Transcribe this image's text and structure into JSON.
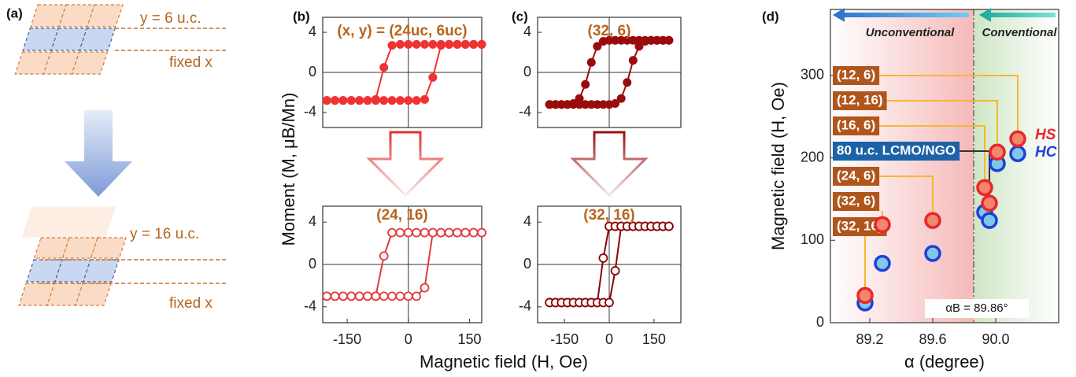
{
  "diagram": {
    "panel": "(a)",
    "top_label": "y = 6 u.c.",
    "top_fixed": "fixed x",
    "bottom_label": "y = 16 u.c.",
    "bottom_fixed": "fixed x"
  },
  "axis_labels": {
    "moment": "Moment (M, μB/Mn)",
    "field": "Magnetic field (H, Oe)"
  },
  "chart_data": [
    {
      "type": "line",
      "panel": "(b)",
      "title": "(x, y) = (24uc, 6uc)",
      "title_color": "#b8651f",
      "xlim": [
        -210,
        180
      ],
      "ylim": [
        -5.5,
        5.5
      ],
      "yticks": [
        -4,
        0,
        4
      ],
      "x": [
        -200,
        -180,
        -160,
        -140,
        -120,
        -100,
        -80,
        -60,
        -40,
        -20,
        0,
        20,
        40,
        60,
        80,
        100,
        120,
        140,
        160,
        180
      ],
      "series": [
        {
          "color": "#f03232",
          "marker": "filled",
          "values": [
            -2.8,
            -2.8,
            -2.8,
            -2.8,
            -2.8,
            -2.8,
            -2.7,
            0.5,
            2.7,
            2.8,
            2.8,
            2.8,
            2.8,
            2.8,
            2.8,
            2.8,
            2.8,
            2.8,
            2.8,
            2.8
          ]
        },
        {
          "color": "#f03232",
          "marker": "filled",
          "values": [
            -2.8,
            -2.8,
            -2.8,
            -2.8,
            -2.8,
            -2.8,
            -2.8,
            -2.8,
            -2.8,
            -2.8,
            -2.8,
            -2.8,
            -2.7,
            -0.5,
            2.7,
            2.8,
            2.8,
            2.8,
            2.8,
            2.8
          ]
        }
      ]
    },
    {
      "type": "line",
      "title": "(24, 16)",
      "title_color": "#b8651f",
      "xlim": [
        -210,
        180
      ],
      "ylim": [
        -5.5,
        5.5
      ],
      "yticks": [
        -4,
        0,
        4
      ],
      "xticks": [
        -150,
        0,
        150
      ],
      "x": [
        -200,
        -180,
        -160,
        -140,
        -120,
        -100,
        -80,
        -60,
        -40,
        -20,
        0,
        20,
        40,
        60,
        80,
        100,
        120,
        140,
        160,
        180
      ],
      "series": [
        {
          "color": "#e23a3a",
          "marker": "open",
          "values": [
            -3.0,
            -3.0,
            -3.0,
            -3.0,
            -3.0,
            -3.0,
            -3.0,
            0.8,
            3.0,
            3.0,
            3.0,
            3.0,
            3.0,
            3.0,
            3.0,
            3.0,
            3.0,
            3.0,
            3.0,
            3.0
          ]
        },
        {
          "color": "#e23a3a",
          "marker": "open",
          "values": [
            -3.0,
            -3.0,
            -3.0,
            -3.0,
            -3.0,
            -3.0,
            -3.0,
            -3.0,
            -3.0,
            -3.0,
            -3.0,
            -3.0,
            -2.2,
            3.0,
            3.0,
            3.0,
            3.0,
            3.0,
            3.0,
            3.0
          ]
        }
      ]
    },
    {
      "type": "line",
      "panel": "(c)",
      "title": "(32, 6)",
      "title_color": "#b8651f",
      "xlim": [
        -240,
        240
      ],
      "ylim": [
        -5.5,
        5.5
      ],
      "yticks": [
        -4,
        0,
        4
      ],
      "x": [
        -200,
        -180,
        -160,
        -140,
        -120,
        -100,
        -80,
        -60,
        -40,
        -20,
        0,
        20,
        40,
        60,
        80,
        100,
        120,
        140,
        160,
        180,
        200
      ],
      "series": [
        {
          "color": "#9a0c0c",
          "marker": "filled",
          "values": [
            -3.2,
            -3.2,
            -3.2,
            -3.2,
            -3.1,
            -2.6,
            -1.2,
            1.0,
            2.6,
            3.1,
            3.2,
            3.2,
            3.2,
            3.2,
            3.2,
            3.2,
            3.2,
            3.2,
            3.2,
            3.2,
            3.2
          ]
        },
        {
          "color": "#9a0c0c",
          "marker": "filled",
          "values": [
            -3.2,
            -3.2,
            -3.2,
            -3.2,
            -3.2,
            -3.2,
            -3.2,
            -3.2,
            -3.2,
            -3.2,
            -3.2,
            -3.1,
            -2.6,
            -1.0,
            1.2,
            2.6,
            3.1,
            3.2,
            3.2,
            3.2,
            3.2
          ]
        }
      ]
    },
    {
      "type": "line",
      "title": "(32, 16)",
      "title_color": "#b8651f",
      "xlim": [
        -240,
        240
      ],
      "ylim": [
        -5.5,
        5.5
      ],
      "yticks": [
        -4,
        0,
        4
      ],
      "xticks": [
        -150,
        0,
        150
      ],
      "x": [
        -200,
        -180,
        -160,
        -140,
        -120,
        -100,
        -80,
        -60,
        -40,
        -20,
        0,
        20,
        40,
        60,
        80,
        100,
        120,
        140,
        160,
        180,
        200
      ],
      "series": [
        {
          "color": "#8b0000",
          "marker": "open",
          "values": [
            -3.6,
            -3.6,
            -3.6,
            -3.6,
            -3.6,
            -3.6,
            -3.6,
            -3.6,
            -3.6,
            0.6,
            3.6,
            3.6,
            3.6,
            3.6,
            3.6,
            3.6,
            3.6,
            3.6,
            3.6,
            3.6,
            3.6
          ]
        },
        {
          "color": "#8b0000",
          "marker": "open",
          "values": [
            -3.6,
            -3.6,
            -3.6,
            -3.6,
            -3.6,
            -3.6,
            -3.6,
            -3.6,
            -3.6,
            -3.6,
            -3.6,
            -0.6,
            3.6,
            3.6,
            3.6,
            3.6,
            3.6,
            3.6,
            3.6,
            3.6,
            3.6
          ]
        }
      ]
    },
    {
      "type": "scatter",
      "panel": "(d)",
      "xlabel": "α (degree)",
      "ylabel": "Magnetic field (H, Oe)",
      "xlim": [
        88.95,
        90.4
      ],
      "ylim": [
        0,
        380
      ],
      "xticks": [
        89.2,
        89.6,
        {
          "value": 90,
          "label": "90.0"
        }
      ],
      "yticks": [
        0,
        100,
        200,
        300
      ],
      "x": [
        90.14,
        90.01,
        89.93,
        89.96,
        89.6,
        89.28,
        89.17
      ],
      "labels": [
        "(12, 6)",
        "(12, 16)",
        "(16, 6)",
        "80 u.c. LCMO/NGO",
        "(24, 6)",
        "(32, 6)",
        "(32, 16)"
      ],
      "label_colors": [
        "#b0561c",
        "#b0561c",
        "#b0561c",
        "#1b62a8",
        "#b0561c",
        "#b0561c",
        "#b0561c"
      ],
      "series": [
        {
          "name": "HS",
          "color": "#e8262b",
          "fill": "#f2876a",
          "values": [
            223,
            207,
            164,
            145,
            124,
            119,
            33
          ]
        },
        {
          "name": "HC",
          "color": "#1f3fd8",
          "fill": "#7fc8ec",
          "values": [
            205,
            193,
            134,
            124,
            84,
            72,
            24
          ]
        }
      ],
      "vline": {
        "value": 89.86,
        "label": "αB = 89.86°"
      },
      "regions": {
        "left": "Unconventional",
        "right": "Conventional"
      }
    }
  ]
}
